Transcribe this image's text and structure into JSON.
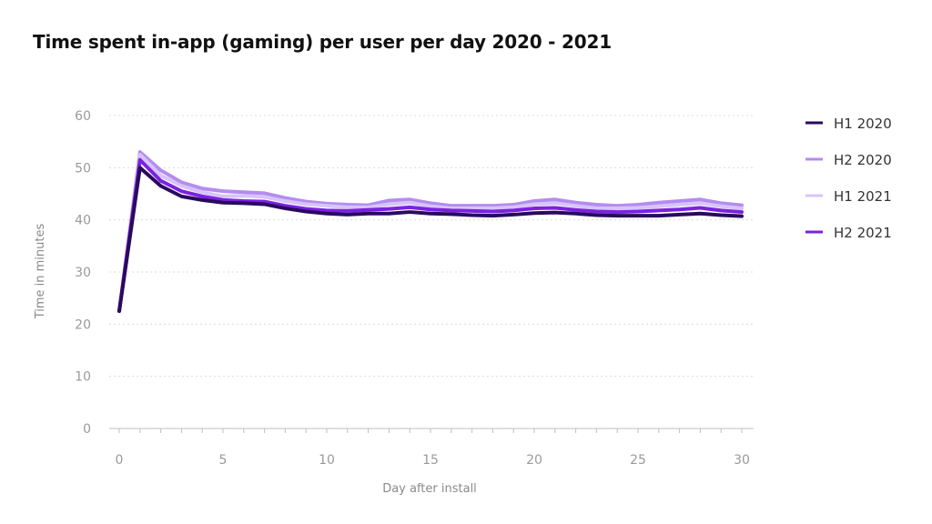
{
  "chart_data": {
    "type": "line",
    "title": "Time spent in-app (gaming) per user per day 2020 - 2021",
    "xlabel": "Day after install",
    "ylabel": "Time in minutes",
    "xlim": [
      0,
      30
    ],
    "ylim": [
      0,
      60
    ],
    "x_ticks": [
      0,
      5,
      10,
      15,
      20,
      25,
      30
    ],
    "y_ticks": [
      0,
      10,
      20,
      30,
      40,
      50,
      60
    ],
    "grid": "horizontal-dotted",
    "legend_position": "right",
    "x": [
      0,
      1,
      2,
      3,
      4,
      5,
      6,
      7,
      8,
      9,
      10,
      11,
      12,
      13,
      14,
      15,
      16,
      17,
      18,
      19,
      20,
      21,
      22,
      23,
      24,
      25,
      26,
      27,
      28,
      29,
      30
    ],
    "series": [
      {
        "name": "H1 2020",
        "color": "#2a0a5e",
        "values": [
          22.5,
          50.0,
          46.5,
          44.5,
          43.8,
          43.3,
          43.2,
          43.0,
          42.2,
          41.6,
          41.2,
          41.0,
          41.2,
          41.2,
          41.5,
          41.2,
          41.1,
          40.9,
          40.8,
          41.0,
          41.3,
          41.4,
          41.2,
          40.9,
          40.8,
          40.8,
          40.8,
          41.0,
          41.2,
          40.9,
          40.7
        ]
      },
      {
        "name": "H2 2020",
        "color": "#b48cf0",
        "values": [
          22.5,
          53.0,
          49.5,
          47.2,
          46.0,
          45.5,
          45.3,
          45.1,
          44.2,
          43.5,
          43.1,
          42.9,
          42.8,
          43.7,
          43.9,
          43.2,
          42.7,
          42.7,
          42.7,
          42.9,
          43.6,
          43.9,
          43.3,
          42.9,
          42.7,
          42.9,
          43.3,
          43.6,
          43.9,
          43.2,
          42.8
        ]
      },
      {
        "name": "H1 2021",
        "color": "#d7c4fa",
        "values": [
          22.5,
          52.5,
          48.5,
          46.5,
          45.3,
          44.5,
          44.6,
          44.4,
          43.6,
          43.0,
          42.7,
          42.4,
          42.4,
          43.0,
          43.3,
          42.6,
          42.2,
          42.2,
          42.2,
          42.4,
          43.0,
          43.2,
          42.7,
          42.2,
          42.2,
          42.3,
          42.6,
          42.9,
          43.2,
          42.6,
          42.2
        ]
      },
      {
        "name": "H2 2021",
        "color": "#7a22e0",
        "values": [
          22.5,
          51.5,
          47.5,
          45.5,
          44.5,
          43.8,
          43.6,
          43.5,
          42.7,
          42.1,
          41.8,
          41.7,
          41.9,
          42.1,
          42.4,
          42.0,
          41.8,
          41.7,
          41.6,
          41.8,
          42.2,
          42.3,
          41.9,
          41.6,
          41.5,
          41.6,
          41.8,
          42.0,
          42.3,
          41.8,
          41.5
        ]
      }
    ]
  }
}
